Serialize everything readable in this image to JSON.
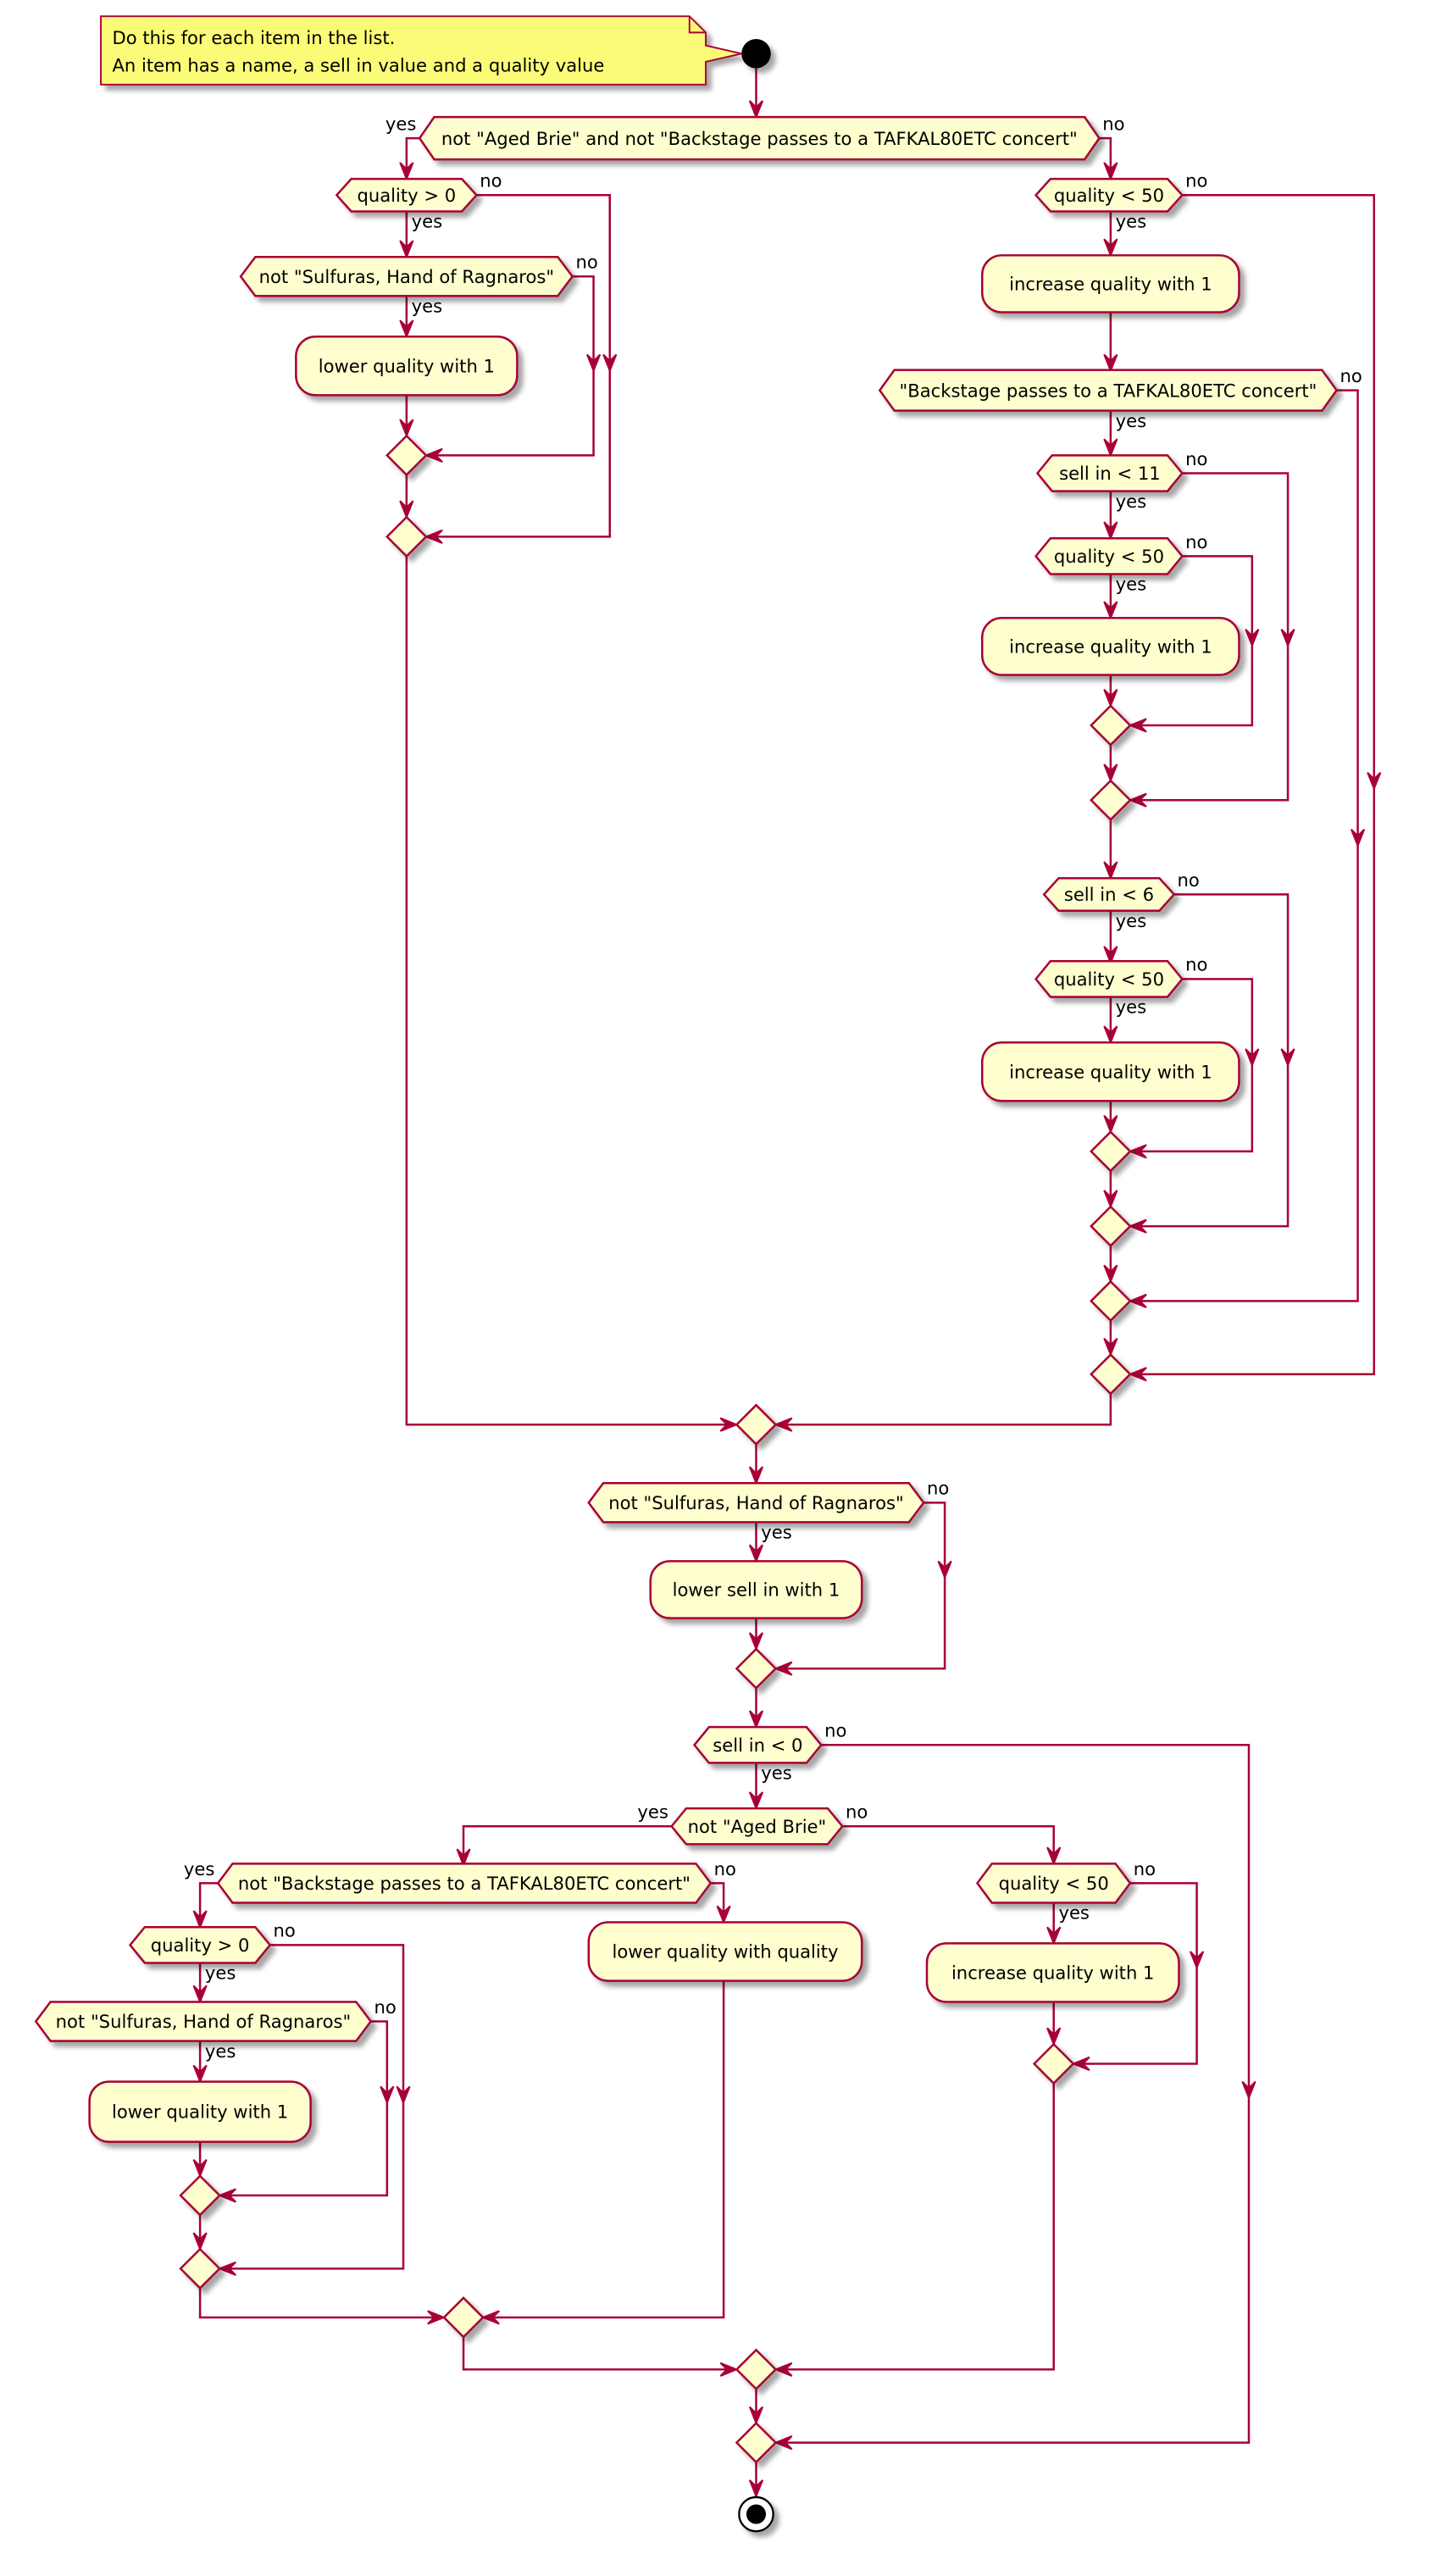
{
  "colors": {
    "line": "#A80036",
    "fill": "#FEFECE",
    "note": "#FBFB77",
    "shadow": "#999999"
  },
  "note": {
    "lines": [
      "Do this for each item in the list.",
      "An item has a name, a sell in value and a quality value"
    ]
  },
  "decisions": [
    {
      "label": "not \"Aged Brie\" and not \"Backstage passes to a TAFKAL80ETC concert\"",
      "yes": "yes",
      "no": "no"
    },
    {
      "label": "quality > 0",
      "yes": "yes",
      "no": "no"
    },
    {
      "label": "not \"Sulfuras, Hand of Ragnaros\"",
      "yes": "yes",
      "no": "no"
    },
    {
      "label": "quality < 50",
      "yes": "yes",
      "no": "no"
    },
    {
      "label": "\"Backstage passes to a TAFKAL80ETC concert\"",
      "yes": "yes",
      "no": "no"
    },
    {
      "label": "sell in < 11",
      "yes": "yes",
      "no": "no"
    },
    {
      "label": "quality < 50",
      "yes": "yes",
      "no": "no"
    },
    {
      "label": "sell in < 6",
      "yes": "yes",
      "no": "no"
    },
    {
      "label": "quality < 50",
      "yes": "yes",
      "no": "no"
    },
    {
      "label": "not \"Sulfuras, Hand of Ragnaros\"",
      "yes": "yes",
      "no": "no"
    },
    {
      "label": "sell in < 0",
      "yes": "yes",
      "no": "no"
    },
    {
      "label": "not \"Aged Brie\"",
      "yes": "yes",
      "no": "no"
    },
    {
      "label": "not \"Backstage passes to a TAFKAL80ETC concert\"",
      "yes": "yes",
      "no": "no"
    },
    {
      "label": "quality > 0",
      "yes": "yes",
      "no": "no"
    },
    {
      "label": "not \"Sulfuras, Hand of Ragnaros\"",
      "yes": "yes",
      "no": "no"
    },
    {
      "label": "quality < 50",
      "yes": "yes",
      "no": "no"
    }
  ],
  "actions": [
    {
      "label": "lower quality with 1"
    },
    {
      "label": "increase quality with 1"
    },
    {
      "label": "increase quality with 1"
    },
    {
      "label": "increase quality with 1"
    },
    {
      "label": "lower sell in with 1"
    },
    {
      "label": "lower quality with 1"
    },
    {
      "label": "lower quality with quality"
    },
    {
      "label": "increase quality with 1"
    }
  ]
}
